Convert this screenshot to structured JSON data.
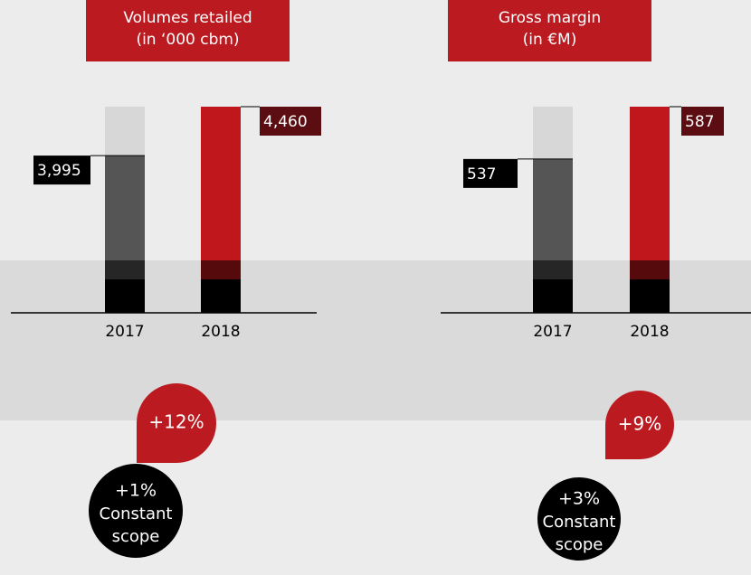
{
  "chart_data": [
    {
      "type": "bar",
      "title": [
        "Volumes retailed",
        "(in ‘000 cbm)"
      ],
      "categories": [
        "2017",
        "2018"
      ],
      "values": [
        3995,
        4460
      ],
      "value_labels": [
        "3,995",
        "4,460"
      ],
      "colors": [
        "#555555",
        "#c0171c"
      ],
      "ylim": [
        2500,
        4460
      ],
      "growth": "+12%",
      "constant_scope_growth": "+1%",
      "constant_scope_label": [
        "Constant",
        "scope"
      ]
    },
    {
      "type": "bar",
      "title": [
        "Gross margin",
        "(in €M)"
      ],
      "categories": [
        "2017",
        "2018"
      ],
      "values": [
        537,
        587
      ],
      "value_labels": [
        "537",
        "587"
      ],
      "colors": [
        "#555555",
        "#c0171c"
      ],
      "ylim": [
        390,
        587
      ],
      "growth": "+9%",
      "constant_scope_growth": "+3%",
      "constant_scope_label": [
        "Constant",
        "scope"
      ]
    }
  ]
}
